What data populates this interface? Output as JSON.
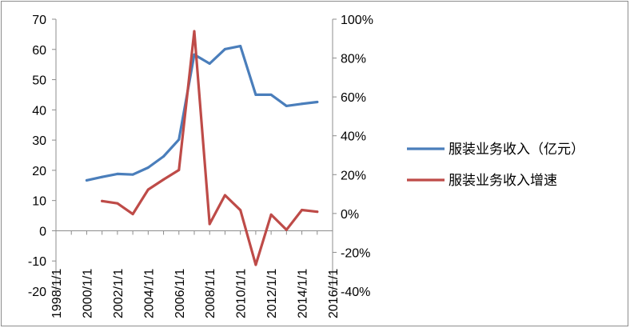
{
  "chart_data": {
    "type": "line",
    "title": "",
    "xlabel": "",
    "ylabel_left": "",
    "ylabel_right": "",
    "x_tick_labels": [
      "1998/1/1",
      "2000/1/1",
      "2002/1/1",
      "2004/1/1",
      "2006/1/1",
      "2008/1/1",
      "2010/1/1",
      "2012/1/1",
      "2014/1/1",
      "2016/1/1"
    ],
    "x_range": [
      1998,
      2016
    ],
    "ylim_left": [
      -20,
      70
    ],
    "y_ticks_left": [
      -20,
      -10,
      0,
      10,
      20,
      30,
      40,
      50,
      60,
      70
    ],
    "ylim_right": [
      -40,
      100
    ],
    "y_ticks_right_labels": [
      "-40%",
      "-20%",
      "0%",
      "20%",
      "40%",
      "60%",
      "80%",
      "100%"
    ],
    "y_ticks_right_values": [
      -40,
      -20,
      0,
      20,
      40,
      60,
      80,
      100
    ],
    "grid": false,
    "legend_position": "right",
    "series": [
      {
        "name": "服装业务收入（亿元）",
        "axis": "left",
        "color": "#4a7ebb",
        "x": [
          2000,
          2001,
          2002,
          2003,
          2004,
          2005,
          2006,
          2007,
          2008,
          2009,
          2010,
          2011,
          2012,
          2013,
          2014,
          2015
        ],
        "values": [
          16.7,
          17.8,
          18.8,
          18.6,
          20.9,
          24.6,
          30.2,
          58.3,
          55.3,
          60.1,
          61.1,
          45.0,
          45.0,
          41.3,
          42.0,
          42.6
        ]
      },
      {
        "name": "服装业务收入增速",
        "axis": "right",
        "color": "#be4b48",
        "x": [
          2001,
          2002,
          2003,
          2004,
          2005,
          2006,
          2007,
          2008,
          2009,
          2010,
          2011,
          2012,
          2013,
          2014,
          2015
        ],
        "values": [
          6.4,
          5.2,
          -0.3,
          12.3,
          17.5,
          22.4,
          93.8,
          -5.4,
          9.4,
          1.7,
          -26.4,
          -0.6,
          -8.4,
          1.8,
          0.9
        ]
      }
    ]
  }
}
